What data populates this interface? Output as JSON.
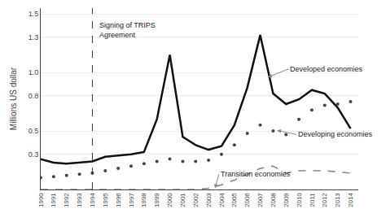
{
  "chart_data": {
    "type": "line",
    "x": [
      1990,
      1991,
      1992,
      1993,
      1994,
      1995,
      1996,
      1997,
      1998,
      1999,
      2000,
      2001,
      2002,
      2003,
      2004,
      2005,
      2006,
      2007,
      2008,
      2009,
      2010,
      2011,
      2012,
      2013,
      2014
    ],
    "series": [
      {
        "color": "#111111",
        "line_style": "solid",
        "marker": "none",
        "values": [
          0.26,
          0.23,
          0.22,
          0.23,
          0.24,
          0.28,
          0.29,
          0.3,
          0.32,
          0.6,
          1.15,
          0.45,
          0.38,
          0.34,
          0.37,
          0.55,
          0.87,
          1.32,
          0.82,
          0.73,
          0.77,
          0.85,
          0.82,
          0.7,
          0.52
        ]
      },
      {
        "color": "#444444",
        "line_style": "none",
        "marker": "circle",
        "values": [
          0.1,
          0.11,
          0.12,
          0.13,
          0.14,
          0.16,
          0.18,
          0.2,
          0.22,
          0.24,
          0.26,
          0.24,
          0.24,
          0.25,
          0.3,
          0.38,
          0.48,
          0.55,
          0.5,
          0.47,
          0.6,
          0.68,
          0.72,
          0.73,
          0.75
        ]
      },
      {
        "color": "#888888",
        "line_style": "dashed",
        "marker": "none",
        "values": [
          0.0,
          0.0,
          0.0,
          0.0,
          0.0,
          0.0,
          0.0,
          0.0,
          0.0,
          0.0,
          0.0,
          0.0,
          0.0,
          0.01,
          0.04,
          0.08,
          0.13,
          0.18,
          0.2,
          0.14,
          0.16,
          0.16,
          0.16,
          0.15,
          0.14
        ]
      }
    ],
    "y_label": "Millions US dollar",
    "xlim": [
      1990,
      2014.6
    ],
    "xticks": [
      1990,
      1991,
      1992,
      1993,
      1994,
      1995,
      1996,
      1997,
      1998,
      1999,
      2000,
      2001,
      2002,
      2003,
      2004,
      2005,
      2006,
      2007,
      2008,
      2009,
      2010,
      2011,
      2012,
      2013,
      2014
    ],
    "ylim": [
      0,
      1.55
    ],
    "yticks": [
      0.3,
      0.5,
      0.8,
      {
        "value": 1.0,
        "label": "1.0"
      },
      1.3,
      1.5
    ],
    "grid": "y",
    "vline": 1994,
    "annotations": [
      {
        "text": "Signing of TRIPS\nAgreement",
        "x": 1994.4,
        "y": 1.45
      },
      {
        "text": "Developed economies",
        "x": 2007.6,
        "y": 0.96,
        "ax": 2009.2,
        "ay": 1.03,
        "color": "#888888"
      },
      {
        "text": "Developing economies",
        "x": 2008.3,
        "y": 0.505,
        "ax": 2009.8,
        "ay": 0.47,
        "color": "#888888"
      },
      {
        "text": "Transition economies",
        "x": 2003.5,
        "y": 0.01,
        "ax": 2003.8,
        "ay": 0.13,
        "color": "#888888"
      }
    ]
  }
}
